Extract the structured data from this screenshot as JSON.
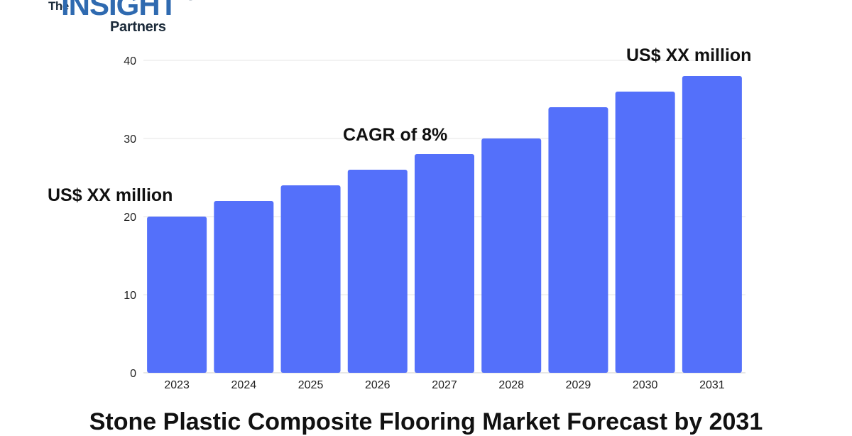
{
  "logo": {
    "the": "The",
    "insight": "INSIGHT",
    "partners": "Partners"
  },
  "chart_data": {
    "type": "bar",
    "title": "Stone Plastic Composite Flooring Market Forecast by 2031",
    "categories": [
      "2023",
      "2024",
      "2025",
      "2026",
      "2027",
      "2028",
      "2029",
      "2030",
      "2031"
    ],
    "values": [
      20,
      22,
      24,
      26,
      28,
      30,
      34,
      36,
      38
    ],
    "ylim": [
      0,
      40
    ],
    "yticks": [
      0,
      10,
      20,
      30,
      40
    ],
    "xlabel": "",
    "ylabel": "",
    "grid": true,
    "bar_color": "#5470fa",
    "annotations": {
      "start": "US$ XX million",
      "cagr": "CAGR of 8%",
      "end": "US$ XX million"
    }
  }
}
